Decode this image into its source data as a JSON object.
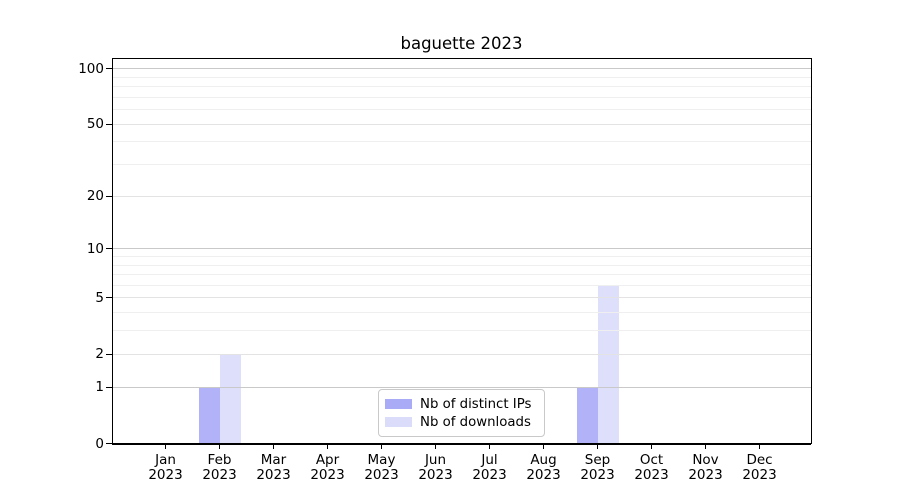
{
  "chart_data": {
    "type": "bar",
    "title": "baguette 2023",
    "months": [
      "Jan",
      "Feb",
      "Mar",
      "Apr",
      "May",
      "Jun",
      "Jul",
      "Aug",
      "Sep",
      "Oct",
      "Nov",
      "Dec"
    ],
    "year": "2023",
    "series": [
      {
        "name": "Nb of distinct IPs",
        "color": "#aaabf7",
        "values": [
          0,
          1,
          0,
          0,
          0,
          0,
          0,
          0,
          1,
          0,
          0,
          0
        ]
      },
      {
        "name": "Nb of downloads",
        "color": "#dbdcfa",
        "values": [
          0,
          2,
          0,
          0,
          0,
          0,
          0,
          0,
          6,
          0,
          0,
          0
        ]
      }
    ],
    "y_axis": {
      "scale": "log10(1+x)",
      "ticks": [
        0,
        1,
        2,
        5,
        10,
        20,
        50,
        100
      ],
      "minor_gridlines": [
        3,
        4,
        6,
        7,
        8,
        9,
        30,
        40,
        60,
        70,
        80,
        90
      ],
      "decade_gridlines": [
        1,
        10,
        100
      ],
      "ylim": [
        0,
        115
      ]
    },
    "xlabel": "",
    "ylabel": "",
    "grid": true,
    "legend_position": "lower center"
  }
}
